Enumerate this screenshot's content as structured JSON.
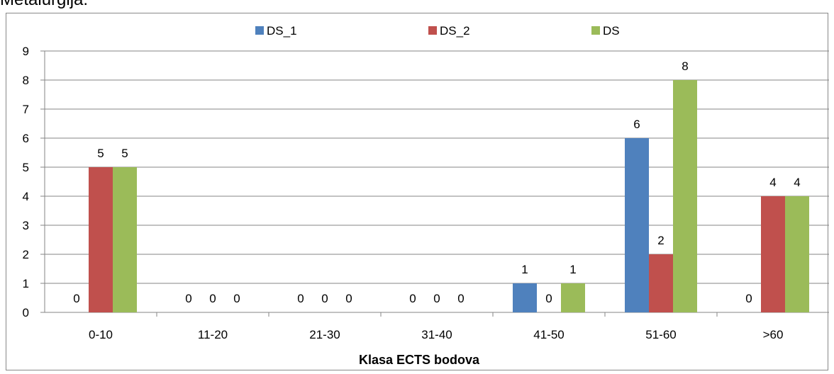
{
  "page": {
    "heading_fragment": "Metalurgija."
  },
  "chart_data": {
    "type": "bar",
    "categories": [
      "0-10",
      "11-20",
      "21-30",
      "31-40",
      "41-50",
      "51-60",
      ">60"
    ],
    "series": [
      {
        "name": "DS_1",
        "color": "#4F81BD",
        "values": [
          0,
          0,
          0,
          0,
          1,
          6,
          0
        ]
      },
      {
        "name": "DS_2",
        "color": "#C0504D",
        "values": [
          5,
          0,
          0,
          0,
          0,
          2,
          4
        ]
      },
      {
        "name": "DS",
        "color": "#9BBB59",
        "values": [
          5,
          0,
          0,
          0,
          1,
          8,
          4
        ]
      }
    ],
    "title": "",
    "xlabel": "Klasa ECTS bodova",
    "ylabel": "",
    "ylim": [
      0,
      9
    ],
    "yticks": [
      "0",
      "1",
      "2",
      "3",
      "4",
      "5",
      "6",
      "7",
      "8",
      "9"
    ],
    "grid": true,
    "legend_position": "top",
    "data_labels": true
  }
}
